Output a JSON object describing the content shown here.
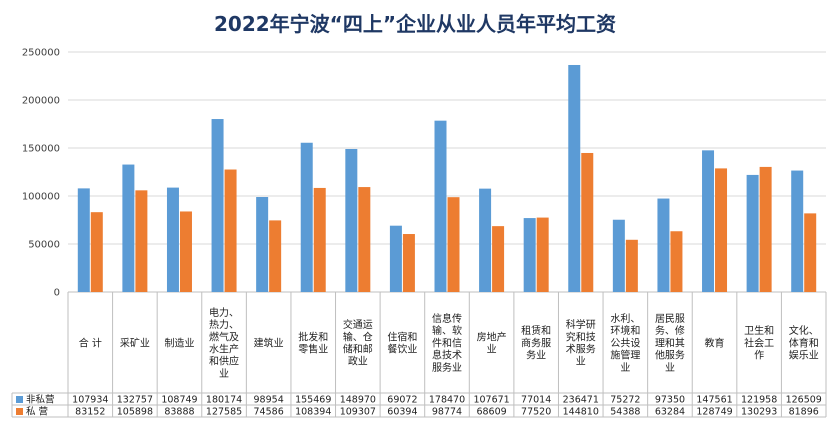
{
  "chart_data": {
    "type": "bar",
    "title": "2022年宁波“四上”企业从业人员年平均工资",
    "categories": [
      [
        "合 计"
      ],
      [
        "采矿业"
      ],
      [
        "制造业"
      ],
      [
        "电力、",
        "热力、",
        "燃气及",
        "水生产",
        "和供应",
        "业"
      ],
      [
        "建筑业"
      ],
      [
        "批发和",
        "零售业"
      ],
      [
        "交通运",
        "输、仓",
        "储和邮",
        "政业"
      ],
      [
        "住宿和",
        "餐饮业"
      ],
      [
        "信息传",
        "输、软",
        "件和信",
        "息技术",
        "服务业"
      ],
      [
        "房地产",
        "业"
      ],
      [
        "租赁和",
        "商务服",
        "务业"
      ],
      [
        "科学研",
        "究和技",
        "术服务",
        "业"
      ],
      [
        "水利、",
        "环境和",
        "公共设",
        "施管理",
        "业"
      ],
      [
        "居民服",
        "务、修",
        "理和其",
        "他服务",
        "业"
      ],
      [
        "教育"
      ],
      [
        "卫生和",
        "社会工",
        "作"
      ],
      [
        "文化、",
        "体育和",
        "娱乐业"
      ]
    ],
    "series": [
      {
        "name": "非私营",
        "color": "#5b9bd5",
        "values": [
          107934,
          132757,
          108749,
          180174,
          98954,
          155469,
          148970,
          69072,
          178470,
          107671,
          77014,
          236471,
          75272,
          97350,
          147561,
          121958,
          126509
        ]
      },
      {
        "name": "私 营",
        "color": "#ed7d31",
        "values": [
          83152,
          105898,
          83888,
          127585,
          74586,
          108394,
          109307,
          60394,
          98774,
          68609,
          77520,
          144810,
          54388,
          63284,
          128749,
          130293,
          81896
        ]
      }
    ],
    "yticks": [
      0,
      50000,
      100000,
      150000,
      200000,
      250000
    ],
    "ylim": [
      0,
      250000
    ],
    "grid": true,
    "legend": "data-table",
    "xlabel": "",
    "ylabel": ""
  }
}
